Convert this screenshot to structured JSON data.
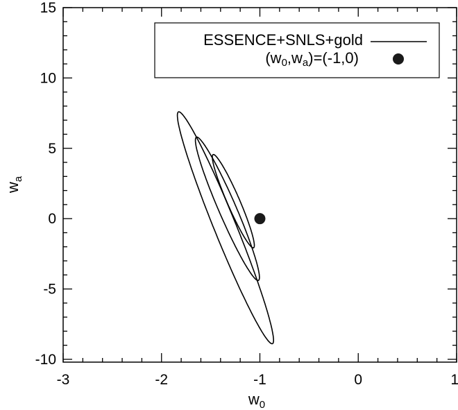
{
  "chart_data": {
    "type": "line",
    "title": "",
    "xlabel": {
      "base": "w",
      "sub": "0"
    },
    "ylabel": {
      "base": "w",
      "sub": "a"
    },
    "xlim": [
      -3,
      1
    ],
    "ylim": [
      -10.2,
      15
    ],
    "x_ticks": [
      -3,
      -2,
      -1,
      0,
      1
    ],
    "y_ticks": [
      -10,
      -5,
      0,
      5,
      10,
      15
    ],
    "x_tick_labels": [
      "-3",
      "-2",
      "-1",
      "0",
      "1"
    ],
    "y_tick_labels": [
      "-10",
      "-5",
      "0",
      "5",
      "10",
      "15"
    ],
    "grid": false,
    "legend_position": "top-right",
    "series": [
      {
        "name": "ESSENCE+SNLS+gold",
        "kind": "confidence-contours",
        "color": "#000000",
        "contours": [
          {
            "center": [
              -1.27,
              1.24
            ],
            "semi_axes": [
              3.47,
              0.33
            ],
            "angle_deg": -72.9
          },
          {
            "center": [
              -1.33,
              0.7
            ],
            "semi_axes": [
              5.33,
              0.46
            ],
            "angle_deg": -72.9
          },
          {
            "center": [
              -1.35,
              -0.65
            ],
            "semi_axes": [
              8.58,
              0.58
            ],
            "angle_deg": -73.9
          }
        ]
      }
    ],
    "points": [
      {
        "label": {
          "pre": "(w",
          "sub1": "0",
          "mid": ",w",
          "sub2": "a",
          "post": ")=(-1,0)"
        },
        "x": -1,
        "y": 0,
        "color": "#1a1a1a"
      }
    ]
  }
}
